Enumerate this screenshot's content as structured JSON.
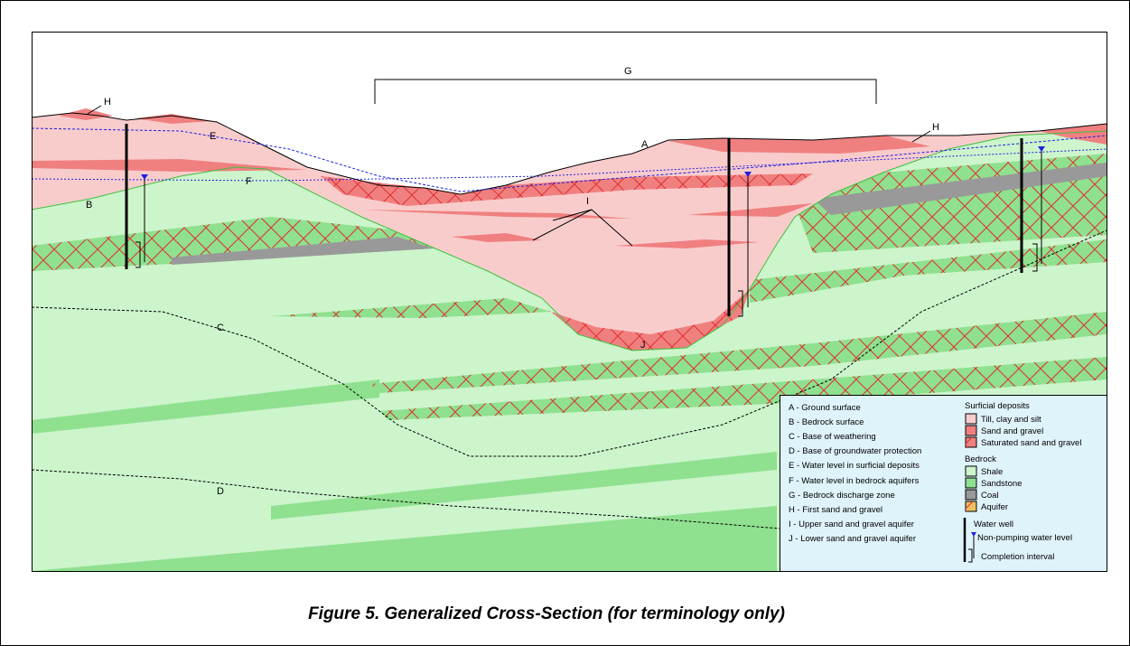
{
  "diagram_labels": [
    "A",
    "B",
    "C",
    "D",
    "E",
    "F",
    "G",
    "H",
    "H",
    "I",
    "J"
  ],
  "legend": {
    "terms": [
      "A - Ground surface",
      "B - Bedrock surface",
      "C - Base of weathering",
      "D - Base of groundwater protection",
      "E - Water level in surficial deposits",
      "F - Water level in bedrock aquifers",
      "G - Bedrock discharge zone",
      "H - First sand and gravel",
      "I  - Upper sand and gravel aquifer",
      "J  - Lower sand and gravel aquifer"
    ],
    "surficial_heading": "Surficial deposits",
    "surficial_items": [
      "Till, clay and silt",
      "Sand and gravel",
      "Saturated sand and gravel"
    ],
    "bedrock_heading": "Bedrock",
    "bedrock_items": [
      "Shale",
      "Sandstone",
      "Coal",
      "Aquifer"
    ],
    "well_items": [
      "Water well",
      "Non-pumping water level",
      "Completion interval"
    ]
  },
  "caption": "Figure 5. Generalized Cross-Section (for terminology only)"
}
